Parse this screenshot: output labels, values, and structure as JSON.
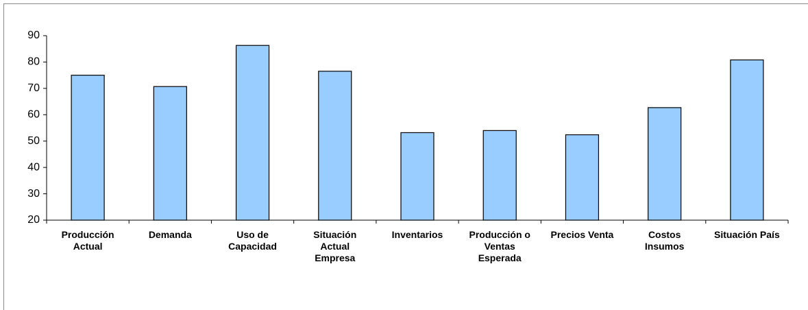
{
  "chart_data": {
    "type": "bar",
    "categories": [
      "Producción Actual",
      "Demanda",
      "Uso de Capacidad",
      "Situación Actual Empresa",
      "Inventarios",
      "Producción o Ventas Esperada",
      "Precios Venta",
      "Costos Insumos",
      "Situación País"
    ],
    "values": [
      75,
      70.7,
      86.3,
      76.5,
      53.2,
      54,
      52.4,
      62.7,
      80.8
    ],
    "color": "#99ccff",
    "ylim": [
      20,
      90
    ],
    "yticks": [
      20,
      30,
      40,
      50,
      60,
      70,
      80,
      90
    ],
    "grid": false
  }
}
